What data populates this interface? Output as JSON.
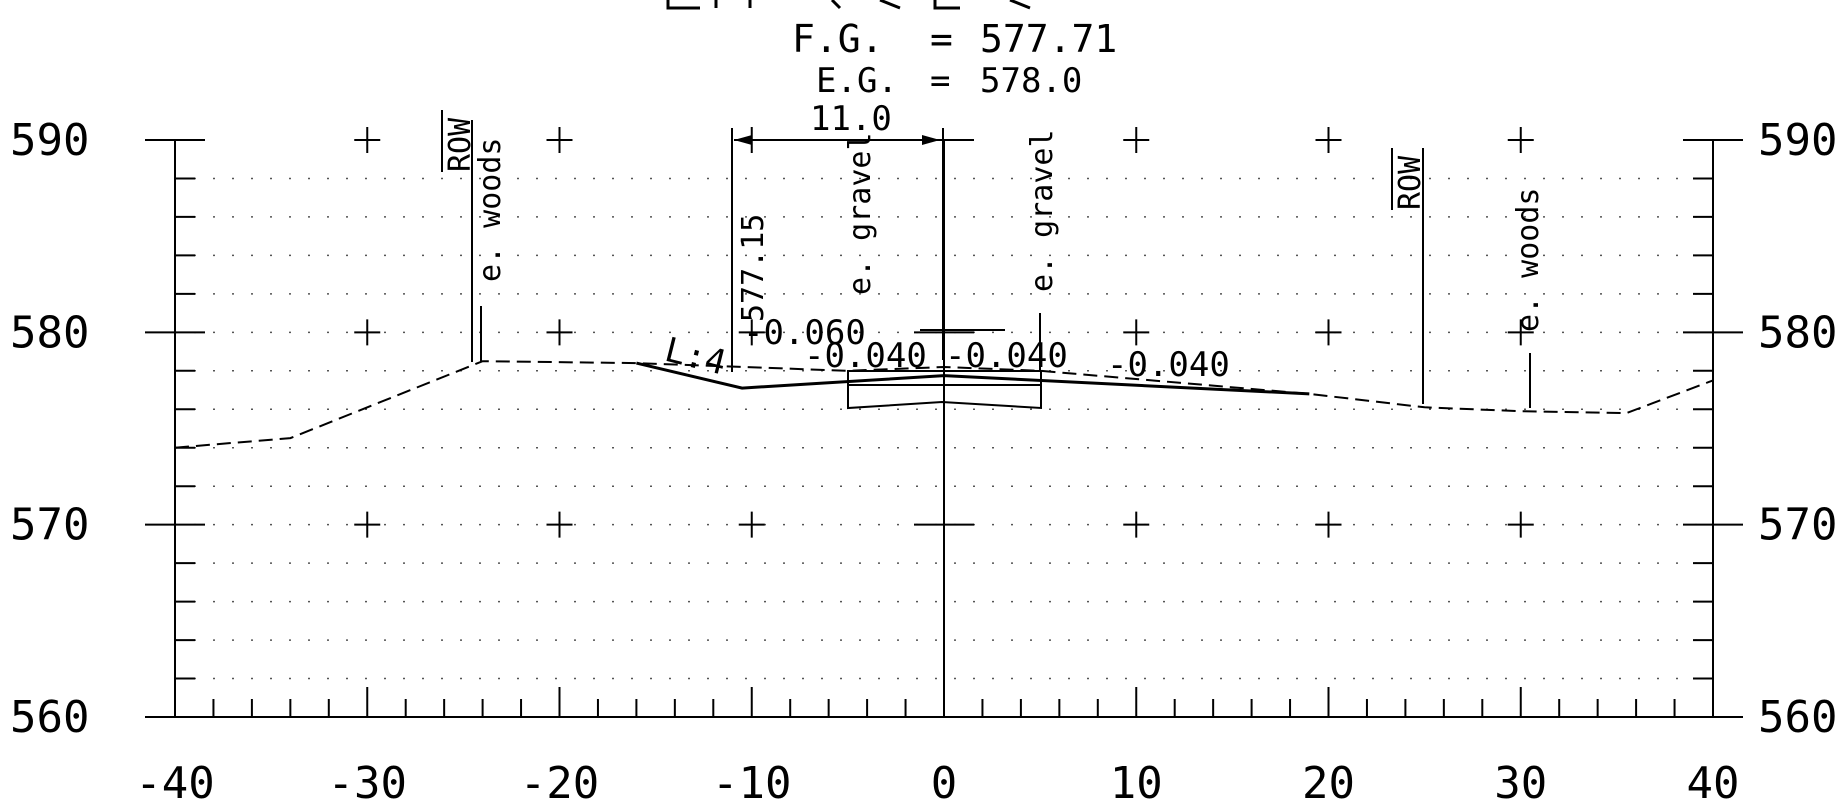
{
  "header": {
    "fg_label": "F.G.",
    "fg_eq": "=",
    "fg_value": "577.71",
    "eg_label": "E.G.",
    "eg_eq": "=",
    "eg_value": "578.0"
  },
  "chart_data": {
    "type": "line",
    "x_ticks": [
      "-40",
      "-30",
      "-20",
      "-10",
      "0",
      "10",
      "20",
      "30",
      "40"
    ],
    "y_ticks_left": [
      "590",
      "580",
      "570",
      "560"
    ],
    "y_ticks_right": [
      "590",
      "580",
      "570",
      "560"
    ],
    "xlim": [
      -40,
      40
    ],
    "ylim": [
      560,
      590
    ],
    "grid": "dotted",
    "series": [
      {
        "line": "dashed",
        "points": [
          [
            -40,
            574.0
          ],
          [
            -34,
            574.5
          ],
          [
            -24,
            578.5
          ],
          [
            -16,
            578.4
          ],
          [
            -5,
            578.0
          ],
          [
            0,
            578.2
          ],
          [
            5,
            578.0
          ],
          [
            19,
            576.8
          ],
          [
            25,
            576.1
          ],
          [
            30,
            575.9
          ],
          [
            35.5,
            575.8
          ],
          [
            40,
            577.5
          ]
        ]
      },
      {
        "line": "solid",
        "points": [
          [
            -16,
            578.4
          ],
          [
            -10.5,
            577.1
          ],
          [
            0,
            577.75
          ],
          [
            19,
            576.8
          ]
        ]
      }
    ],
    "annotations": {
      "row_left": "ROW",
      "woods_left": "e. woods",
      "dim_width": "11.0",
      "elev_hinge": "577.15",
      "gravel_left": "e. gravel",
      "gravel_right": "e. gravel",
      "row_right": "ROW",
      "woods_right": "e. woods",
      "slope_ratio": "L:4",
      "slope_060": "-0.060",
      "slope_040_a": "-0.040",
      "slope_040_b": "-0.040",
      "slope_040_c": "-0.040"
    }
  }
}
